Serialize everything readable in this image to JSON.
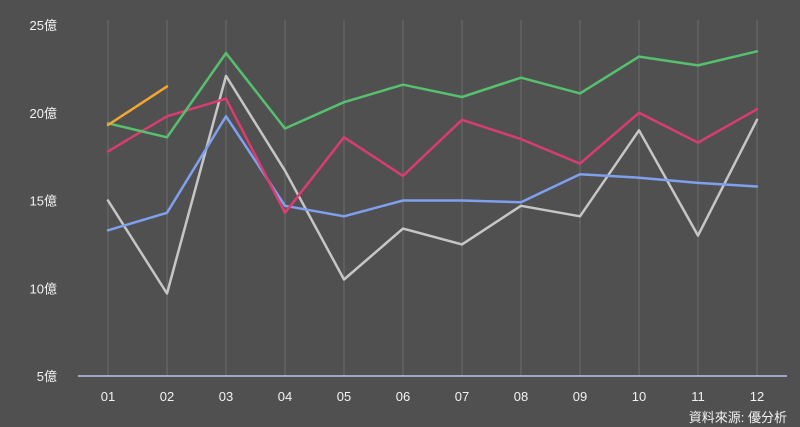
{
  "chart_data": {
    "type": "line",
    "title": "",
    "xlabel": "",
    "ylabel": "",
    "categories": [
      "01",
      "02",
      "03",
      "04",
      "05",
      "06",
      "07",
      "08",
      "09",
      "10",
      "11",
      "12"
    ],
    "ylim": [
      5,
      25
    ],
    "yticks": [
      {
        "value": 25,
        "label": "25億"
      },
      {
        "value": 20,
        "label": "20億"
      },
      {
        "value": 15,
        "label": "15億"
      },
      {
        "value": 10,
        "label": "10億"
      },
      {
        "value": 5,
        "label": "5億"
      }
    ],
    "grid": {
      "vertical": true,
      "horizontal": false
    },
    "legend": "none",
    "series": [
      {
        "color": "#c6c6c6",
        "values": [
          15.0,
          9.7,
          22.1,
          16.7,
          10.5,
          13.4,
          12.5,
          14.7,
          14.1,
          19.0,
          13.0,
          19.6
        ]
      },
      {
        "color": "#7fa0ef",
        "values": [
          13.3,
          14.3,
          19.8,
          14.7,
          14.1,
          15.0,
          15.0,
          14.9,
          16.5,
          16.3,
          16.0,
          15.8
        ]
      },
      {
        "color": "#d93d6f",
        "values": [
          17.8,
          19.8,
          20.8,
          14.3,
          18.6,
          16.4,
          19.6,
          18.5,
          17.1,
          20.0,
          18.3,
          20.2
        ]
      },
      {
        "color": "#56c06f",
        "values": [
          19.4,
          18.6,
          23.4,
          19.1,
          20.6,
          21.6,
          20.9,
          22.0,
          21.1,
          23.2,
          22.7,
          23.5
        ]
      },
      {
        "color": "#f2a732",
        "values": [
          19.3,
          21.5,
          null,
          null,
          null,
          null,
          null,
          null,
          null,
          null,
          null,
          null
        ]
      }
    ]
  },
  "source_note": "資料來源: 優分析",
  "colors": {
    "background": "#505050",
    "gridline": "#6c6c6c",
    "axis": "#b6c6ee",
    "text": "#f2f2f2"
  }
}
